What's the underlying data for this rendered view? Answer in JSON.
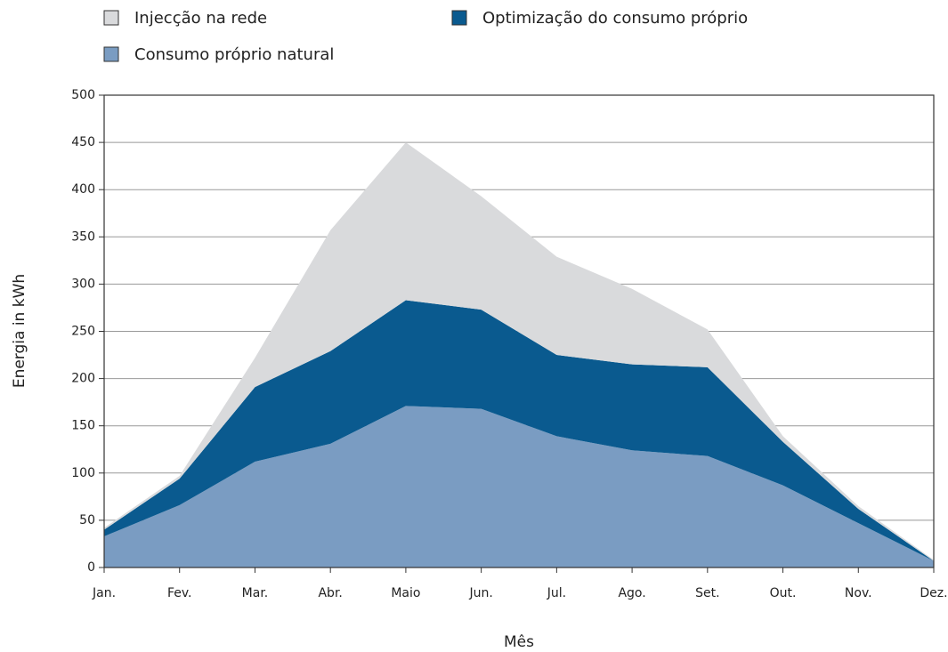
{
  "chart_data": {
    "type": "area",
    "stacked": true,
    "xlabel": "Mês",
    "ylabel": "Energia in kWh",
    "categories": [
      "Jan.",
      "Fev.",
      "Mar.",
      "Abr.",
      "Maio",
      "Jun.",
      "Jul.",
      "Ago.",
      "Set.",
      "Out.",
      "Nov.",
      "Dez."
    ],
    "series": [
      {
        "name": "Consumo próprio natural",
        "color": "#7a9cc2",
        "values": [
          33,
          66,
          112,
          131,
          171,
          168,
          139,
          124,
          118,
          87,
          47,
          7
        ]
      },
      {
        "name": "Optimização do consumo próprio",
        "color": "#0a5a8f",
        "values": [
          7,
          28,
          79,
          98,
          112,
          105,
          86,
          91,
          94,
          46,
          15,
          0
        ]
      },
      {
        "name": "Injecção na rede",
        "color": "#d9dadc",
        "values": [
          2,
          3,
          31,
          128,
          167,
          120,
          104,
          80,
          40,
          6,
          3,
          1
        ]
      }
    ],
    "ylim": [
      0,
      500
    ],
    "yticks": [
      0,
      50,
      100,
      150,
      200,
      250,
      300,
      350,
      400,
      450,
      500
    ],
    "grid": true
  }
}
